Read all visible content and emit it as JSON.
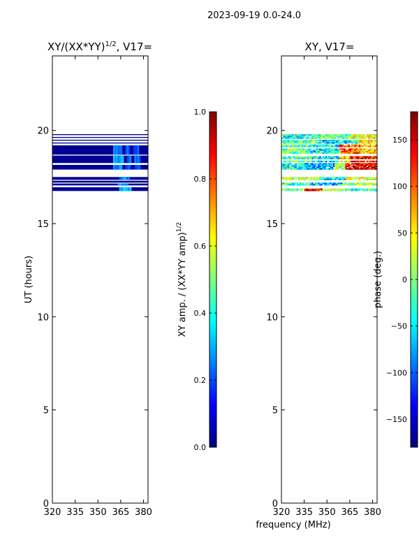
{
  "suptitle": "2023-09-19 0.0-24.0",
  "colormap": [
    "#00007f",
    "#0000ff",
    "#007fff",
    "#00ffff",
    "#7fff7f",
    "#ffff00",
    "#ff7f00",
    "#ff0000",
    "#7f0000"
  ],
  "chart_data": [
    {
      "type": "heatmap",
      "title": "XY/(XX*YY)^{1/2}, V17=",
      "title_main": "XY/(XX*YY)",
      "title_sup": "1/2",
      "title_rest": ", V17=",
      "xlabel": "",
      "ylabel": "UT (hours)",
      "xlim": [
        320,
        383
      ],
      "ylim": [
        0,
        24
      ],
      "xticks": [
        320,
        335,
        350,
        365,
        380
      ],
      "yticks": [
        0,
        5,
        10,
        15,
        20
      ],
      "colorbar": {
        "label_main": "XY amp. / (XX*YY amp)",
        "label_sup": "1/2",
        "range": [
          0.0,
          1.0
        ],
        "ticks": [
          0.0,
          0.2,
          0.4,
          0.6,
          0.8,
          1.0
        ],
        "tick_labels": [
          "0.0",
          "0.2",
          "0.4",
          "0.6",
          "0.8",
          "1.0"
        ]
      },
      "data_rows": [
        {
          "t0": 16.75,
          "t1": 16.95,
          "value": 0.02,
          "hot": [
            [
              364,
              372,
              0.3
            ]
          ]
        },
        {
          "t0": 17.05,
          "t1": 17.15,
          "value": 0.02,
          "hot": [
            [
              363,
              370,
              0.25
            ]
          ]
        },
        {
          "t0": 17.2,
          "t1": 17.3,
          "value": 0.02,
          "hot": []
        },
        {
          "t0": 17.35,
          "t1": 17.5,
          "value": 0.02,
          "hot": [
            [
              364,
              371,
              0.25
            ]
          ]
        },
        {
          "t0": 17.9,
          "t1": 18.15,
          "value": 0.02,
          "hot": [
            [
              360,
              366,
              0.25
            ],
            [
              368,
              372,
              0.2
            ],
            [
              374,
              378,
              0.22
            ]
          ]
        },
        {
          "t0": 18.25,
          "t1": 18.65,
          "value": 0.02,
          "hot": [
            [
              360,
              367,
              0.28
            ],
            [
              369,
              372,
              0.22
            ],
            [
              374,
              378,
              0.25
            ]
          ]
        },
        {
          "t0": 18.7,
          "t1": 19.2,
          "value": 0.02,
          "hot": [
            [
              360,
              366,
              0.25
            ],
            [
              368,
              371,
              0.2
            ],
            [
              373,
              377,
              0.22
            ]
          ]
        },
        {
          "t0": 19.3,
          "t1": 19.35,
          "value": 0.02,
          "hot": []
        },
        {
          "t0": 19.45,
          "t1": 19.5,
          "value": 0.02,
          "hot": []
        },
        {
          "t0": 19.6,
          "t1": 19.65,
          "value": 0.02,
          "hot": []
        },
        {
          "t0": 19.75,
          "t1": 19.8,
          "value": 0.02,
          "hot": []
        }
      ]
    },
    {
      "type": "heatmap",
      "title": "XY, V17=",
      "xlabel": "frequency (MHz)",
      "ylabel": "",
      "xlim": [
        320,
        383
      ],
      "ylim": [
        0,
        24
      ],
      "xticks": [
        320,
        335,
        350,
        365,
        380
      ],
      "yticks": [
        0,
        5,
        10,
        15,
        20
      ],
      "colorbar": {
        "label": "phase (deg.)",
        "range": [
          -180,
          180
        ],
        "ticks": [
          -150,
          -100,
          -50,
          0,
          50,
          100,
          150
        ],
        "tick_labels": [
          "−150",
          "−100",
          "−50",
          "0",
          "50",
          "100",
          "150"
        ]
      },
      "phase_bands": [
        {
          "t0": 16.75,
          "t1": 16.95,
          "segments": [
            [
              320,
              335,
              -10
            ],
            [
              335,
              347,
              140
            ],
            [
              347,
              362,
              20
            ],
            [
              362,
              383,
              -30
            ]
          ]
        },
        {
          "t0": 17.05,
          "t1": 17.2,
          "segments": [
            [
              320,
              340,
              -30
            ],
            [
              340,
              360,
              -60
            ],
            [
              360,
              383,
              10
            ]
          ]
        },
        {
          "t0": 17.25,
          "t1": 17.5,
          "segments": [
            [
              320,
              345,
              20
            ],
            [
              345,
              362,
              -40
            ],
            [
              362,
              383,
              40
            ]
          ]
        },
        {
          "t0": 17.9,
          "t1": 18.25,
          "segments": [
            [
              320,
              335,
              -40
            ],
            [
              335,
              355,
              -70
            ],
            [
              355,
              362,
              20
            ],
            [
              362,
              383,
              150
            ]
          ]
        },
        {
          "t0": 18.3,
          "t1": 18.7,
          "segments": [
            [
              320,
              340,
              -20
            ],
            [
              340,
              358,
              -50
            ],
            [
              358,
              365,
              60
            ],
            [
              365,
              383,
              140
            ]
          ]
        },
        {
          "t0": 18.75,
          "t1": 19.25,
          "segments": [
            [
              320,
              338,
              -10
            ],
            [
              338,
              358,
              -45
            ],
            [
              358,
              372,
              110
            ],
            [
              372,
              383,
              60
            ]
          ]
        },
        {
          "t0": 19.3,
          "t1": 19.5,
          "segments": [
            [
              320,
              345,
              -20
            ],
            [
              345,
              370,
              -60
            ],
            [
              370,
              383,
              40
            ]
          ]
        },
        {
          "t0": 19.55,
          "t1": 19.8,
          "segments": [
            [
              320,
              340,
              -30
            ],
            [
              340,
              365,
              -10
            ],
            [
              365,
              383,
              30
            ]
          ]
        }
      ]
    }
  ]
}
